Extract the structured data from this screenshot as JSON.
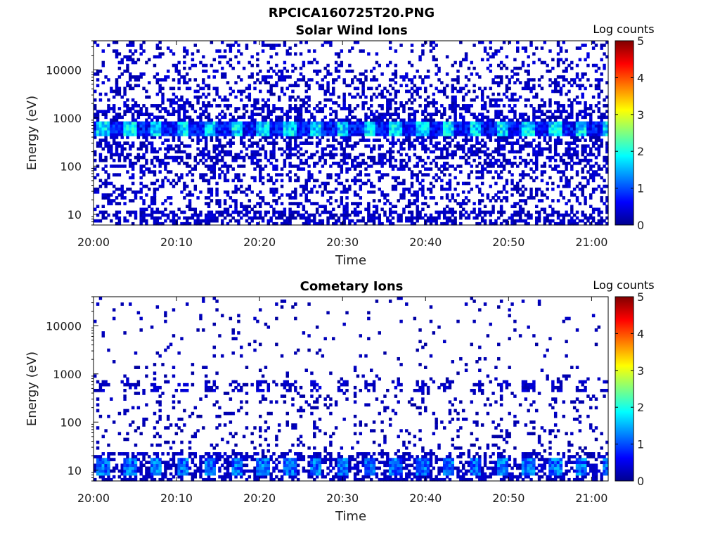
{
  "figure_title": "RPCICA160725T20.PNG",
  "colors": {
    "colormap": "jet",
    "background": "#ffffff",
    "frame": "#000000"
  },
  "chart_data": [
    {
      "type": "heatmap",
      "title": "Solar Wind Ions",
      "xlabel": "Time",
      "ylabel": "Energy (eV)",
      "x_ticks": [
        "20:00",
        "20:10",
        "20:20",
        "20:30",
        "20:40",
        "20:50",
        "21:00"
      ],
      "x_range": [
        "20:00",
        "21:02"
      ],
      "y_scale": "log",
      "y_ticks": [
        "10",
        "100",
        "1000",
        "10000"
      ],
      "y_range": [
        6,
        40000
      ],
      "colorbar": {
        "label": "Log counts",
        "min": 0,
        "max": 5,
        "ticks": [
          "0",
          "1",
          "2",
          "3",
          "4",
          "5"
        ]
      },
      "grid": false,
      "peak_band": {
        "energy_eV": [
          400,
          800
        ],
        "log_counts_max": 2.2,
        "period_min": 3.2
      }
    },
    {
      "type": "heatmap",
      "title": "Cometary Ions",
      "xlabel": "Time",
      "ylabel": "Energy (eV)",
      "x_ticks": [
        "20:00",
        "20:10",
        "20:20",
        "20:30",
        "20:40",
        "20:50",
        "21:00"
      ],
      "x_range": [
        "20:00",
        "21:02"
      ],
      "y_scale": "log",
      "y_ticks": [
        "10",
        "100",
        "1000",
        "10000"
      ],
      "y_range": [
        6,
        40000
      ],
      "colorbar": {
        "label": "Log counts",
        "min": 0,
        "max": 5,
        "ticks": [
          "0",
          "1",
          "2",
          "3",
          "4",
          "5"
        ]
      },
      "grid": false,
      "peak_band": {
        "energy_eV": [
          8,
          18
        ],
        "log_counts_max": 1.6,
        "period_min": 3.2
      }
    }
  ]
}
